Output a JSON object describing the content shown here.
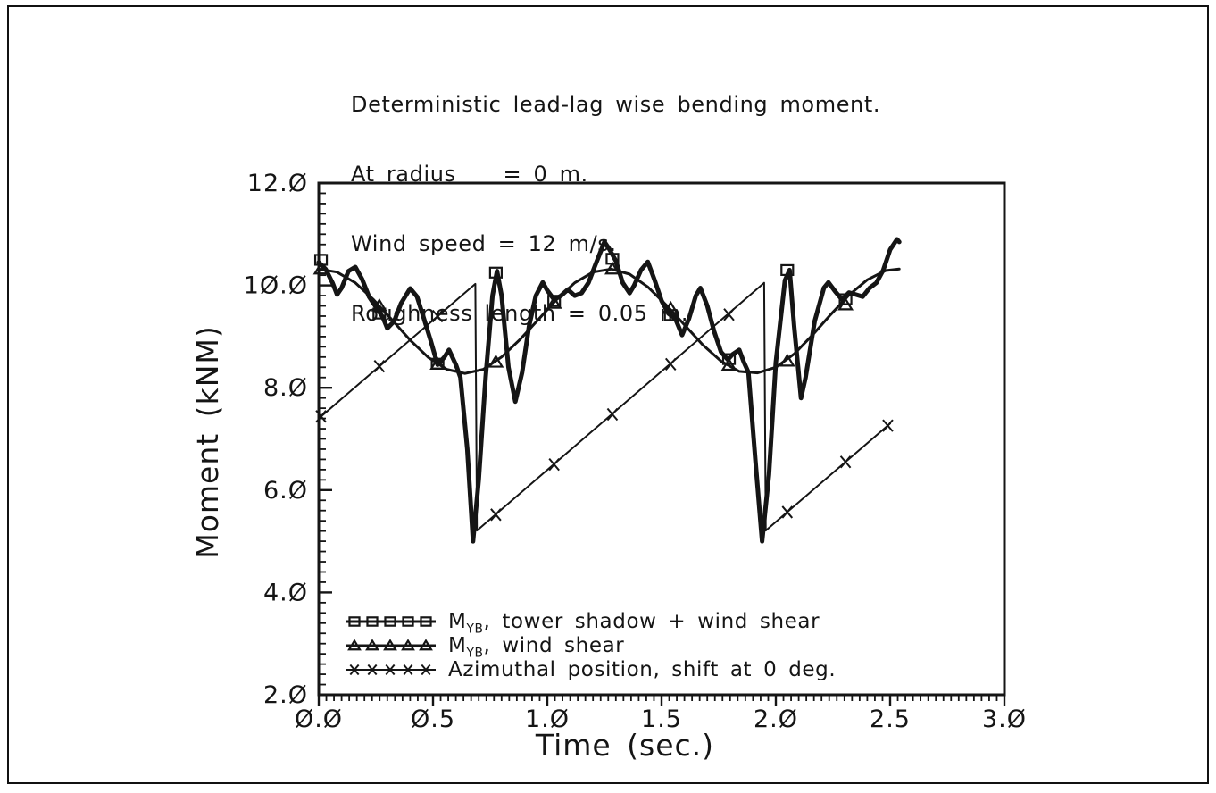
{
  "page": {
    "background": "#ffffff",
    "ink": "#151515"
  },
  "chart_data": {
    "type": "line",
    "title": "Deterministic lead-lag wise bending moment.",
    "title_lines": [
      "Deterministic lead-lag wise bending moment.",
      "At radius    = 0 m.",
      "Wind speed = 12 m/s.",
      "Roughness length = 0.05 m."
    ],
    "xlabel": "Time  (sec.)",
    "ylabel": "Moment  (kNM)",
    "xlim": [
      0.0,
      3.0
    ],
    "ylim": [
      2.0,
      12.0
    ],
    "grid": false,
    "legend_position": "inside-bottom-left",
    "x_major_step": 0.5,
    "x_minor_per_major": 15,
    "y_major_step": 2.0,
    "y_minor_per_major": 10,
    "x_tick_labels": [
      "0.0",
      "0.5",
      "1.0",
      "1.5",
      "2.0",
      "2.5",
      "3.0"
    ],
    "y_tick_labels": [
      "2.0",
      "4.0",
      "6.0",
      "8.0",
      "10.0",
      "12.0"
    ],
    "slashed_zero_ticks": true,
    "marker_interval_sec": 0.255,
    "series": [
      {
        "id": "myb-tower-shadow-wind-shear",
        "name": "MYB, tower shadow + wind shear",
        "label_prefix": "M",
        "label_sub": "YB",
        "label_rest": ", tower shadow + wind shear",
        "marker": "square",
        "line_width": 5,
        "points": [
          [
            0.0,
            10.45
          ],
          [
            0.03,
            10.32
          ],
          [
            0.06,
            10.05
          ],
          [
            0.08,
            9.82
          ],
          [
            0.1,
            9.95
          ],
          [
            0.13,
            10.28
          ],
          [
            0.16,
            10.36
          ],
          [
            0.19,
            10.12
          ],
          [
            0.22,
            9.78
          ],
          [
            0.25,
            9.58
          ],
          [
            0.28,
            9.38
          ],
          [
            0.3,
            9.16
          ],
          [
            0.33,
            9.3
          ],
          [
            0.36,
            9.65
          ],
          [
            0.4,
            9.94
          ],
          [
            0.43,
            9.78
          ],
          [
            0.46,
            9.35
          ],
          [
            0.49,
            8.92
          ],
          [
            0.52,
            8.45
          ],
          [
            0.55,
            8.6
          ],
          [
            0.57,
            8.74
          ],
          [
            0.6,
            8.45
          ],
          [
            0.62,
            8.2
          ],
          [
            0.65,
            6.8
          ],
          [
            0.675,
            5.0
          ],
          [
            0.7,
            6.2
          ],
          [
            0.73,
            8.2
          ],
          [
            0.76,
            9.8
          ],
          [
            0.78,
            10.28
          ],
          [
            0.8,
            9.8
          ],
          [
            0.83,
            8.4
          ],
          [
            0.86,
            7.73
          ],
          [
            0.89,
            8.3
          ],
          [
            0.92,
            9.2
          ],
          [
            0.95,
            9.8
          ],
          [
            0.98,
            10.06
          ],
          [
            1.0,
            9.9
          ],
          [
            1.03,
            9.72
          ],
          [
            1.06,
            9.8
          ],
          [
            1.09,
            9.92
          ],
          [
            1.12,
            9.8
          ],
          [
            1.15,
            9.85
          ],
          [
            1.18,
            10.05
          ],
          [
            1.21,
            10.4
          ],
          [
            1.25,
            10.85
          ],
          [
            1.27,
            10.72
          ],
          [
            1.3,
            10.48
          ],
          [
            1.33,
            10.05
          ],
          [
            1.36,
            9.85
          ],
          [
            1.38,
            10.0
          ],
          [
            1.41,
            10.3
          ],
          [
            1.44,
            10.46
          ],
          [
            1.47,
            10.1
          ],
          [
            1.5,
            9.7
          ],
          [
            1.53,
            9.45
          ],
          [
            1.56,
            9.35
          ],
          [
            1.59,
            9.03
          ],
          [
            1.62,
            9.35
          ],
          [
            1.65,
            9.8
          ],
          [
            1.67,
            9.95
          ],
          [
            1.7,
            9.6
          ],
          [
            1.73,
            9.1
          ],
          [
            1.76,
            8.7
          ],
          [
            1.79,
            8.55
          ],
          [
            1.81,
            8.65
          ],
          [
            1.84,
            8.74
          ],
          [
            1.86,
            8.5
          ],
          [
            1.88,
            8.3
          ],
          [
            1.91,
            6.6
          ],
          [
            1.94,
            5.0
          ],
          [
            1.97,
            6.3
          ],
          [
            2.0,
            8.5
          ],
          [
            2.04,
            10.1
          ],
          [
            2.06,
            10.3
          ],
          [
            2.08,
            9.2
          ],
          [
            2.11,
            7.8
          ],
          [
            2.13,
            8.2
          ],
          [
            2.17,
            9.3
          ],
          [
            2.21,
            9.95
          ],
          [
            2.23,
            10.06
          ],
          [
            2.26,
            9.88
          ],
          [
            2.29,
            9.72
          ],
          [
            2.32,
            9.86
          ],
          [
            2.35,
            9.82
          ],
          [
            2.38,
            9.78
          ],
          [
            2.41,
            9.95
          ],
          [
            2.44,
            10.05
          ],
          [
            2.47,
            10.3
          ],
          [
            2.5,
            10.7
          ],
          [
            2.53,
            10.9
          ],
          [
            2.54,
            10.85
          ]
        ],
        "marker_points": [
          [
            0.01,
            10.5
          ],
          [
            0.265,
            9.45
          ],
          [
            0.52,
            8.47
          ],
          [
            0.775,
            10.25
          ],
          [
            1.03,
            9.7
          ],
          [
            1.285,
            10.52
          ],
          [
            1.54,
            9.42
          ],
          [
            1.795,
            8.56
          ],
          [
            2.05,
            10.3
          ],
          [
            2.305,
            9.73
          ]
        ]
      },
      {
        "id": "myb-wind-shear",
        "name": "MYB, wind shear",
        "label_prefix": "M",
        "label_sub": "YB",
        "label_rest": ", wind shear",
        "marker": "triangle",
        "line_width": 3,
        "points": [
          [
            0.0,
            10.32
          ],
          [
            0.08,
            10.26
          ],
          [
            0.16,
            10.05
          ],
          [
            0.24,
            9.72
          ],
          [
            0.32,
            9.33
          ],
          [
            0.4,
            8.93
          ],
          [
            0.48,
            8.59
          ],
          [
            0.56,
            8.36
          ],
          [
            0.64,
            8.28
          ],
          [
            0.72,
            8.36
          ],
          [
            0.8,
            8.6
          ],
          [
            0.88,
            8.94
          ],
          [
            0.96,
            9.33
          ],
          [
            1.04,
            9.72
          ],
          [
            1.12,
            10.05
          ],
          [
            1.2,
            10.26
          ],
          [
            1.28,
            10.32
          ],
          [
            1.36,
            10.22
          ],
          [
            1.44,
            9.97
          ],
          [
            1.52,
            9.62
          ],
          [
            1.6,
            9.23
          ],
          [
            1.68,
            8.84
          ],
          [
            1.76,
            8.52
          ],
          [
            1.84,
            8.32
          ],
          [
            1.92,
            8.29
          ],
          [
            2.0,
            8.4
          ],
          [
            2.08,
            8.66
          ],
          [
            2.16,
            9.03
          ],
          [
            2.24,
            9.43
          ],
          [
            2.32,
            9.81
          ],
          [
            2.4,
            10.11
          ],
          [
            2.48,
            10.29
          ],
          [
            2.54,
            10.32
          ]
        ],
        "marker_points": [
          [
            0.01,
            10.32
          ],
          [
            0.265,
            9.6
          ],
          [
            0.52,
            8.46
          ],
          [
            0.775,
            8.5
          ],
          [
            1.03,
            9.65
          ],
          [
            1.285,
            10.32
          ],
          [
            1.54,
            9.55
          ],
          [
            1.795,
            8.44
          ],
          [
            2.05,
            8.52
          ],
          [
            2.305,
            9.62
          ]
        ]
      },
      {
        "id": "azimuthal-position",
        "name": "Azimuthal position, shift at 0 deg.",
        "label_prefix": "",
        "label_sub": "",
        "label_rest": "Azimuthal position, shift at 0 deg.",
        "marker": "x",
        "line_width": 2,
        "points": [
          [
            0.0,
            7.4
          ],
          [
            0.685,
            10.03
          ],
          [
            0.692,
            5.21
          ],
          [
            1.949,
            10.05
          ],
          [
            1.956,
            5.21
          ],
          [
            2.5,
            7.3
          ]
        ],
        "marker_points": [
          [
            0.01,
            7.44
          ],
          [
            0.265,
            8.42
          ],
          [
            0.52,
            9.4
          ],
          [
            0.775,
            5.52
          ],
          [
            1.03,
            6.5
          ],
          [
            1.285,
            7.48
          ],
          [
            1.54,
            8.46
          ],
          [
            1.795,
            9.43
          ],
          [
            2.05,
            5.57
          ],
          [
            2.305,
            6.55
          ],
          [
            2.49,
            7.26
          ]
        ]
      }
    ]
  }
}
